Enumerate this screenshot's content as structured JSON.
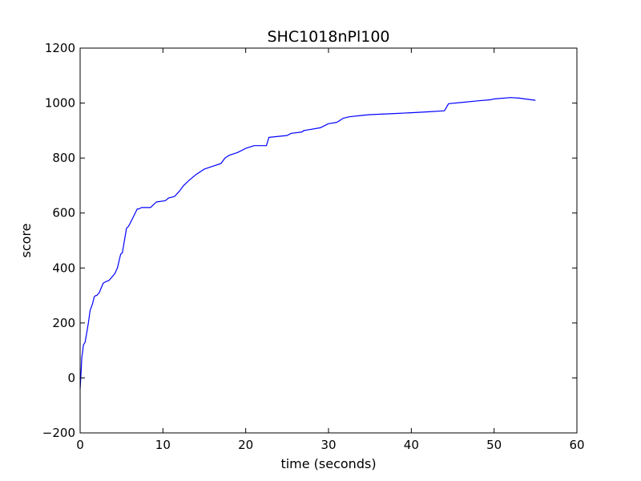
{
  "chart_data": {
    "type": "line",
    "title": "SHC1018nPl100",
    "xlabel": "time (seconds)",
    "ylabel": "score",
    "xlim": [
      0,
      60
    ],
    "ylim": [
      -200,
      1200
    ],
    "x_ticks": [
      0,
      10,
      20,
      30,
      40,
      50,
      60
    ],
    "y_ticks": [
      -200,
      0,
      200,
      400,
      600,
      800,
      1000,
      1200
    ],
    "x_tick_labels": [
      "0",
      "10",
      "20",
      "30",
      "40",
      "50",
      "60"
    ],
    "y_tick_labels": [
      "−200",
      "0",
      "200",
      "400",
      "600",
      "800",
      "1000",
      "1200"
    ],
    "grid": false,
    "legend": "none",
    "series": [
      {
        "color": "#0000ff",
        "x": [
          0.0,
          0.1,
          0.2,
          0.3,
          0.4,
          0.6,
          0.8,
          1.0,
          1.2,
          1.5,
          1.7,
          1.9,
          2.0,
          2.3,
          2.8,
          3.1,
          3.5,
          4.2,
          4.5,
          4.9,
          5.1,
          5.6,
          5.8,
          6.0,
          6.9,
          7.1,
          7.4,
          8.5,
          9.2,
          10.3,
          10.7,
          11.4,
          12.0,
          12.5,
          13.2,
          14.0,
          15.0,
          16.0,
          17.0,
          17.5,
          18.0,
          19.0,
          20.0,
          21.0,
          22.5,
          22.8,
          25.0,
          25.5,
          26.8,
          27.0,
          29.0,
          30.0,
          31.0,
          31.8,
          32.5,
          34.0,
          35.0,
          38.0,
          40.0,
          42.0,
          44.0,
          44.5,
          46.0,
          48.0,
          49.5,
          50.0,
          52.0,
          53.0,
          55.0
        ],
        "y": [
          -40,
          10,
          75,
          95,
          120,
          130,
          165,
          200,
          245,
          270,
          295,
          300,
          300,
          310,
          345,
          350,
          355,
          380,
          400,
          450,
          455,
          545,
          550,
          560,
          615,
          615,
          620,
          620,
          640,
          645,
          655,
          660,
          680,
          700,
          720,
          740,
          760,
          770,
          780,
          800,
          810,
          820,
          835,
          845,
          845,
          875,
          882,
          890,
          895,
          900,
          910,
          925,
          930,
          945,
          950,
          955,
          958,
          962,
          965,
          968,
          972,
          998,
          1002,
          1008,
          1012,
          1015,
          1020,
          1018,
          1010
        ]
      }
    ]
  }
}
